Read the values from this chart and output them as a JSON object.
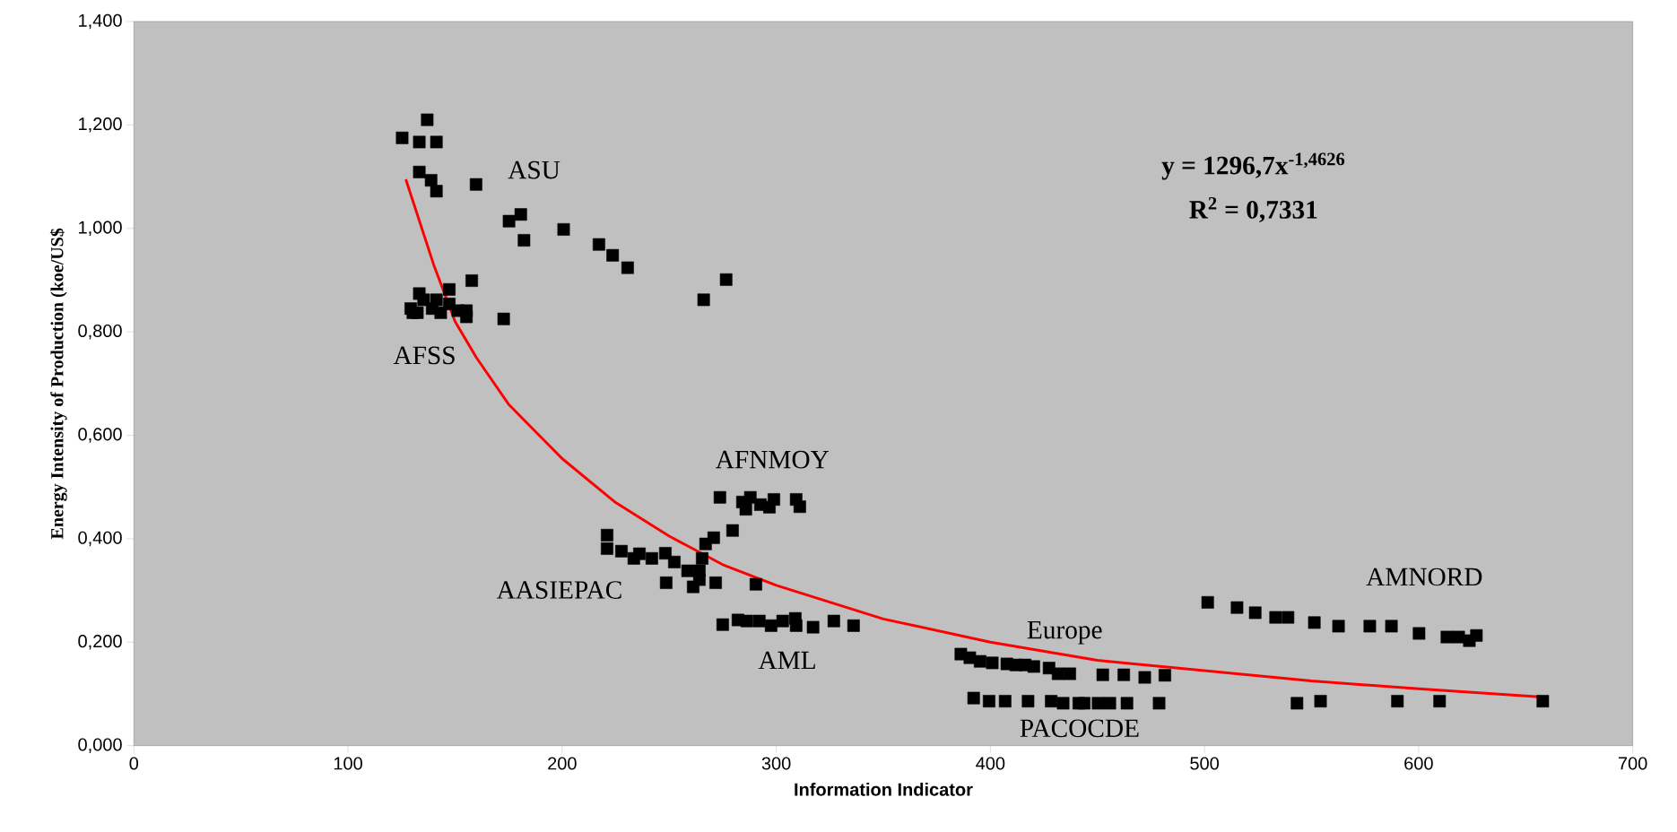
{
  "chart_data": {
    "type": "scatter",
    "xlabel": "Information Indicator",
    "ylabel": "Energy Intensity of Production (koe/US$",
    "xlim": [
      0,
      700
    ],
    "ylim": [
      0,
      1.4
    ],
    "xticks": [
      0,
      100,
      200,
      300,
      400,
      500,
      600,
      700
    ],
    "yticks": [
      {
        "value": 0,
        "label": "0,000"
      },
      {
        "value": 0.2,
        "label": "0,200"
      },
      {
        "value": 0.4,
        "label": "0,400"
      },
      {
        "value": 0.6,
        "label": "0,600"
      },
      {
        "value": 0.8,
        "label": "0,800"
      },
      {
        "value": 1.0,
        "label": "1,000"
      },
      {
        "value": 1.2,
        "label": "1,200"
      },
      {
        "value": 1.4,
        "label": "1,400"
      }
    ],
    "grid": false,
    "series": [
      {
        "color": "#000000",
        "marker": "square",
        "x": [
          125.3,
          133.3,
          137,
          141.3,
          133.3,
          138.8,
          141.3,
          159.8,
          175.2,
          180.7,
          182.2,
          200.7,
          217.2,
          223.6,
          230.6,
          266.1,
          276.6,
          129.3,
          130.3,
          133.3,
          135.3,
          132.4,
          141.3,
          143.3,
          147.3,
          147.3,
          151.3,
          155.3,
          155.3,
          157.8,
          172.7,
          139.3,
          221,
          221,
          227.7,
          233.5,
          236.1,
          241.9,
          248.2,
          252.4,
          248.6,
          258.6,
          261.2,
          264.1,
          264.1,
          265.4,
          267,
          270.8,
          271.7,
          279.6,
          273.7,
          284.2,
          287.9,
          285.8,
          292.6,
          296.8,
          298.9,
          309.3,
          311,
          290.5,
          275,
          282.1,
          286.3,
          292.1,
          297.6,
          303,
          308.9,
          309.3,
          317.2,
          326.9,
          336.1,
          386.2,
          390.4,
          395.2,
          400.9,
          407.7,
          411.9,
          416.2,
          420.3,
          427.4,
          431.6,
          437.1,
          452.5,
          462.3,
          472.1,
          481.5,
          392.2,
          399.4,
          406.9,
          417.6,
          428.4,
          434,
          441.3,
          443.8,
          450.3,
          455.8,
          463.8,
          478.8,
          543.2,
          554.2,
          590.1,
          609.8,
          658,
          501.5,
          515.2,
          523.7,
          533.2,
          539,
          551.3,
          562.6,
          577.2,
          587.3,
          600.2,
          613.2,
          618.7,
          623.7,
          627
        ],
        "values": [
          1.175,
          1.167,
          1.21,
          1.167,
          1.109,
          1.093,
          1.072,
          1.085,
          1.014,
          1.027,
          0.977,
          0.998,
          0.969,
          0.948,
          0.924,
          0.862,
          0.901,
          0.845,
          0.837,
          0.874,
          0.862,
          0.837,
          0.862,
          0.837,
          0.854,
          0.882,
          0.841,
          0.841,
          0.829,
          0.899,
          0.825,
          0.845,
          0.407,
          0.381,
          0.376,
          0.362,
          0.371,
          0.362,
          0.372,
          0.355,
          0.315,
          0.338,
          0.307,
          0.321,
          0.338,
          0.362,
          0.39,
          0.402,
          0.315,
          0.416,
          0.48,
          0.471,
          0.48,
          0.457,
          0.466,
          0.461,
          0.476,
          0.476,
          0.462,
          0.312,
          0.234,
          0.243,
          0.241,
          0.241,
          0.232,
          0.241,
          0.246,
          0.232,
          0.229,
          0.241,
          0.232,
          0.177,
          0.17,
          0.163,
          0.16,
          0.158,
          0.156,
          0.156,
          0.153,
          0.15,
          0.139,
          0.139,
          0.137,
          0.137,
          0.132,
          0.136,
          0.092,
          0.086,
          0.086,
          0.086,
          0.086,
          0.082,
          0.082,
          0.082,
          0.082,
          0.082,
          0.082,
          0.082,
          0.082,
          0.086,
          0.086,
          0.086,
          0.086,
          0.277,
          0.267,
          0.257,
          0.248,
          0.248,
          0.238,
          0.231,
          0.231,
          0.231,
          0.217,
          0.21,
          0.21,
          0.203,
          0.213
        ]
      },
      {
        "type": "line",
        "color": "#ff0000",
        "x": [
          127,
          140,
          150,
          160,
          175,
          200,
          225,
          250,
          275,
          300,
          350,
          400,
          450,
          500,
          550,
          600,
          658
        ],
        "values": [
          1.095,
          0.93,
          0.82,
          0.75,
          0.66,
          0.555,
          0.47,
          0.405,
          0.35,
          0.31,
          0.245,
          0.2,
          0.165,
          0.145,
          0.125,
          0.11,
          0.094
        ]
      }
    ],
    "annotations": [
      "ASU",
      "AFSS",
      "AFNMOY",
      "AASIEPAC",
      "AML",
      "Europe",
      "PACOCDE",
      "AMNORD",
      "y = 1296,7x$^{-1,4626}$",
      "R$^{2}$ = 0,7331"
    ]
  }
}
